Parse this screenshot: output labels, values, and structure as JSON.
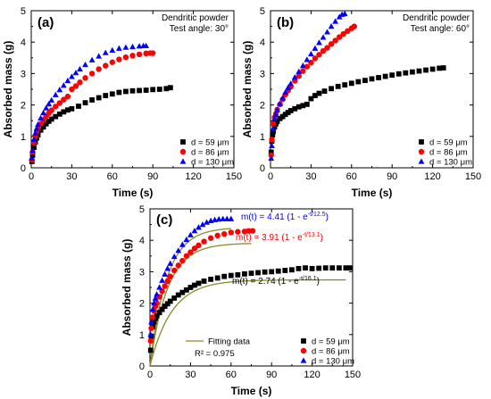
{
  "chart_data": [
    {
      "type": "scatter",
      "panel_label": "(a)",
      "annotation": [
        "Dendritic powder",
        "Test angle: 30°"
      ],
      "xlabel": "Time (s)",
      "ylabel": "Absorbed mass (g)",
      "xlim": [
        0,
        150
      ],
      "ylim": [
        0,
        5
      ],
      "xticks": [
        "0",
        "30",
        "60",
        "90",
        "120",
        "150"
      ],
      "yticks": [
        "0",
        "1",
        "2",
        "3",
        "4",
        "5"
      ],
      "legend_position": "bottom-right",
      "series": [
        {
          "name": "d = 59 μm",
          "marker": "square",
          "color": "#000000",
          "x": [
            0.5,
            1,
            2,
            3,
            4,
            5,
            7,
            9,
            11,
            13,
            15,
            18,
            21,
            24,
            27,
            30,
            35,
            40,
            45,
            50,
            55,
            60,
            65,
            70,
            75,
            80,
            85,
            90,
            95,
            100,
            103
          ],
          "y": [
            0.2,
            0.4,
            0.65,
            0.82,
            0.95,
            1.05,
            1.2,
            1.3,
            1.4,
            1.48,
            1.55,
            1.63,
            1.71,
            1.78,
            1.84,
            1.88,
            1.96,
            2.07,
            2.16,
            2.23,
            2.3,
            2.35,
            2.4,
            2.43,
            2.45,
            2.46,
            2.47,
            2.49,
            2.5,
            2.52,
            2.55
          ]
        },
        {
          "name": "d = 86 μm",
          "marker": "circle",
          "color": "#ff0000",
          "x": [
            0.5,
            1,
            2,
            3,
            4,
            5,
            7,
            9,
            11,
            13,
            15,
            18,
            21,
            24,
            27,
            30,
            33,
            36,
            40,
            45,
            50,
            55,
            60,
            65,
            70,
            75,
            80,
            85,
            88,
            90
          ],
          "y": [
            0.25,
            0.5,
            0.8,
            1.0,
            1.15,
            1.25,
            1.4,
            1.53,
            1.64,
            1.74,
            1.83,
            1.95,
            2.06,
            2.17,
            2.27,
            2.5,
            2.6,
            2.72,
            2.86,
            3.0,
            3.14,
            3.25,
            3.36,
            3.45,
            3.52,
            3.57,
            3.61,
            3.64,
            3.65,
            3.65
          ]
        },
        {
          "name": "d = 130 μm",
          "marker": "triangle",
          "color": "#0000ff",
          "x": [
            0.5,
            1,
            2,
            3,
            4,
            5,
            7,
            9,
            11,
            13,
            15,
            18,
            21,
            24,
            27,
            30,
            33,
            36,
            40,
            45,
            50,
            55,
            60,
            65,
            70,
            75,
            80,
            83,
            85
          ],
          "y": [
            0.3,
            0.55,
            0.9,
            1.1,
            1.25,
            1.38,
            1.58,
            1.75,
            1.9,
            2.03,
            2.15,
            2.32,
            2.48,
            2.62,
            2.77,
            2.9,
            3.02,
            3.14,
            3.28,
            3.43,
            3.55,
            3.66,
            3.74,
            3.8,
            3.83,
            3.85,
            3.87,
            3.88,
            3.88
          ]
        }
      ]
    },
    {
      "type": "scatter",
      "panel_label": "(b)",
      "annotation": [
        "Dendritic powder",
        "Test angle: 60°"
      ],
      "xlabel": "Time (s)",
      "ylabel": "Absorbed mass (g)",
      "xlim": [
        0,
        150
      ],
      "ylim": [
        0,
        5
      ],
      "xticks": [
        "0",
        "30",
        "60",
        "90",
        "120",
        "150"
      ],
      "yticks": [
        "0",
        "1",
        "2",
        "3",
        "4",
        "5"
      ],
      "legend_position": "bottom-right",
      "series": [
        {
          "name": "d = 59 μm",
          "marker": "square",
          "color": "#000000",
          "x": [
            0.5,
            1,
            1.5,
            2,
            3,
            4,
            5,
            7,
            9,
            11,
            13,
            15,
            18,
            21,
            24,
            27,
            30,
            33,
            36,
            40,
            45,
            50,
            55,
            60,
            65,
            70,
            75,
            80,
            85,
            90,
            95,
            100,
            105,
            110,
            115,
            120,
            125,
            128
          ],
          "y": [
            0.5,
            0.85,
            1.05,
            1.15,
            1.3,
            1.4,
            1.48,
            1.57,
            1.63,
            1.7,
            1.76,
            1.82,
            1.88,
            1.94,
            1.98,
            2.02,
            2.2,
            2.3,
            2.37,
            2.44,
            2.52,
            2.59,
            2.64,
            2.69,
            2.74,
            2.78,
            2.83,
            2.87,
            2.91,
            2.95,
            2.99,
            3.02,
            3.05,
            3.08,
            3.11,
            3.14,
            3.17,
            3.18
          ]
        },
        {
          "name": "d = 86 μm",
          "marker": "circle",
          "color": "#ff0000",
          "x": [
            0.5,
            1,
            2,
            3,
            4,
            5,
            7,
            9,
            11,
            13,
            15,
            18,
            21,
            24,
            27,
            30,
            33,
            36,
            39,
            42,
            45,
            48,
            51,
            54,
            57,
            60,
            62
          ],
          "y": [
            0.4,
            0.9,
            1.4,
            1.6,
            1.72,
            1.85,
            2.02,
            2.18,
            2.33,
            2.46,
            2.58,
            2.77,
            2.92,
            3.08,
            3.22,
            3.35,
            3.48,
            3.6,
            3.72,
            3.82,
            3.94,
            4.05,
            4.16,
            4.26,
            4.35,
            4.44,
            4.5
          ]
        },
        {
          "name": "d = 130 μm",
          "marker": "triangle",
          "color": "#0000ff",
          "x": [
            0.5,
            1,
            2,
            3,
            4,
            5,
            7,
            9,
            11,
            13,
            15,
            18,
            21,
            24,
            27,
            30,
            33,
            36,
            39,
            42,
            45,
            48,
            51,
            53,
            55
          ],
          "y": [
            0.3,
            0.7,
            1.25,
            1.55,
            1.7,
            1.84,
            2.04,
            2.22,
            2.4,
            2.55,
            2.68,
            2.88,
            3.06,
            3.25,
            3.44,
            3.62,
            3.8,
            3.98,
            4.15,
            4.32,
            4.5,
            4.66,
            4.8,
            4.88,
            4.9
          ]
        }
      ]
    },
    {
      "type": "scatter",
      "panel_label": "(c)",
      "xlabel": "Time (s)",
      "ylabel": "Absorbed mass (g)",
      "xlim": [
        0,
        150
      ],
      "ylim": [
        0,
        5
      ],
      "xticks": [
        "0",
        "30",
        "60",
        "90",
        "120",
        "150"
      ],
      "yticks": [
        "0",
        "1",
        "2",
        "3",
        "4",
        "5"
      ],
      "legend_position": "bottom-right",
      "fit_legend": {
        "label": "Fitting data",
        "r2": "R² = 0.975"
      },
      "equations": [
        {
          "prefix": "m(t) = 4.41 (1 - e",
          "exponent": "-t/12.5",
          "suffix": ")",
          "color": "#0000ff",
          "amplitude": 4.41,
          "tau": 12.5
        },
        {
          "prefix": "m(t) = 3.91 (1 - e",
          "exponent": "-t/13.1",
          "suffix": ")",
          "color": "#ff0000",
          "amplitude": 3.91,
          "tau": 13.1
        },
        {
          "prefix": "m(t) = 2.74 (1 - e",
          "exponent": "-t/16.1",
          "suffix": ")",
          "color": "#000000",
          "amplitude": 2.74,
          "tau": 16.1
        }
      ],
      "fit_color": "#8a8a2a",
      "fit_xmax": [
        60,
        75,
        145
      ],
      "series": [
        {
          "name": "d = 59 μm",
          "marker": "square",
          "color": "#000000",
          "x": [
            0.5,
            1,
            2,
            3,
            4,
            5,
            7,
            9,
            11,
            13,
            15,
            18,
            21,
            24,
            27,
            30,
            33,
            36,
            40,
            45,
            50,
            55,
            60,
            65,
            70,
            75,
            80,
            85,
            90,
            95,
            100,
            105,
            110,
            115,
            120,
            125,
            130,
            135,
            140,
            145,
            148
          ],
          "y": [
            0.5,
            0.95,
            1.25,
            1.4,
            1.52,
            1.6,
            1.7,
            1.8,
            1.9,
            1.98,
            2.06,
            2.16,
            2.26,
            2.34,
            2.42,
            2.5,
            2.57,
            2.63,
            2.7,
            2.76,
            2.8,
            2.85,
            2.88,
            2.9,
            2.93,
            2.95,
            2.97,
            2.99,
            3.0,
            3.02,
            3.04,
            3.06,
            3.1,
            3.12,
            3.1,
            3.11,
            3.12,
            3.12,
            3.12,
            3.12,
            3.12
          ]
        },
        {
          "name": "d = 86 μm",
          "marker": "circle",
          "color": "#ff0000",
          "x": [
            0.5,
            1,
            2,
            3,
            4,
            5,
            7,
            9,
            11,
            13,
            15,
            18,
            21,
            24,
            27,
            30,
            33,
            36,
            40,
            45,
            50,
            55,
            60,
            65,
            70,
            73,
            76
          ],
          "y": [
            0.8,
            1.2,
            1.55,
            1.75,
            1.9,
            2.0,
            2.2,
            2.38,
            2.54,
            2.7,
            2.85,
            3.04,
            3.2,
            3.35,
            3.5,
            3.62,
            3.74,
            3.84,
            3.96,
            4.07,
            4.15,
            4.2,
            4.25,
            4.27,
            4.28,
            4.3,
            4.3
          ]
        },
        {
          "name": "d = 130 μm",
          "marker": "triangle",
          "color": "#0000ff",
          "x": [
            0.5,
            1,
            2,
            3,
            4,
            5,
            7,
            9,
            11,
            13,
            15,
            18,
            21,
            24,
            27,
            30,
            33,
            36,
            39,
            42,
            45,
            48,
            51,
            54,
            57,
            60
          ],
          "y": [
            1.0,
            1.4,
            1.8,
            2.0,
            2.15,
            2.28,
            2.5,
            2.72,
            2.92,
            3.1,
            3.26,
            3.48,
            3.67,
            3.86,
            4.02,
            4.17,
            4.3,
            4.41,
            4.5,
            4.57,
            4.62,
            4.65,
            4.67,
            4.68,
            4.68,
            4.68
          ]
        }
      ]
    }
  ]
}
